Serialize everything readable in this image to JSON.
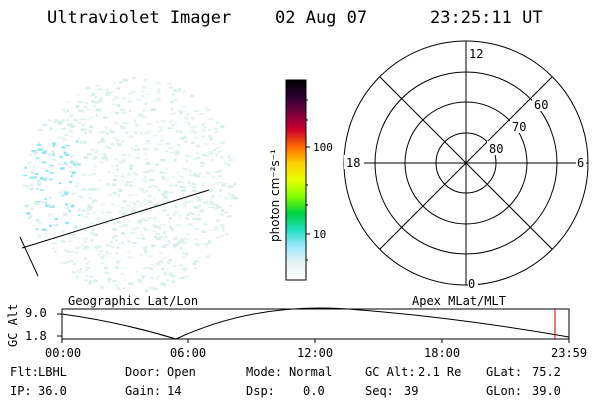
{
  "header": {
    "title": "Ultraviolet Imager",
    "date": "02 Aug 07",
    "time": "23:25:11 UT"
  },
  "colorbar": {
    "unit_label": "photon cm⁻²s⁻¹",
    "ticks": [
      "100",
      "10"
    ],
    "scale": "log",
    "colors": [
      "#000000",
      "#2a0030",
      "#7a0040",
      "#d0002a",
      "#ff6a00",
      "#ffd000",
      "#e8ff00",
      "#80ff00",
      "#00d040",
      "#20e0c0",
      "#a0e8ff",
      "#e8f4f4",
      "#ffffff"
    ]
  },
  "polar_plot": {
    "mlt_labels": [
      "12",
      "18",
      "6",
      "0"
    ],
    "lat_labels": [
      "60",
      "70",
      "80"
    ]
  },
  "altitude_plot": {
    "left_title": "Geographic Lat/Lon",
    "right_title": "Apex MLat/MLT",
    "axis_label": "GC Alt",
    "y_ticks": [
      "9.0",
      "1.8"
    ],
    "x_ticks": [
      "00:00",
      "06:00",
      "12:00",
      "18:00",
      "23:59"
    ],
    "marker_color": "#cc0000"
  },
  "status": {
    "flt_label": "Flt:",
    "flt_value": "LBHL",
    "ip_label": "IP:",
    "ip_value": "36.0",
    "door_label": "Door:",
    "door_value": "Open",
    "gain_label": "Gain:",
    "gain_value": "14",
    "mode_label": "Mode:",
    "mode_value": "Normal",
    "dsp_label": "Dsp:",
    "dsp_value": "0.0",
    "gcalt_label": "GC Alt:",
    "gcalt_value": "2.1 Re",
    "seq_label": "Seq:",
    "seq_value": "39",
    "glat_label": "GLat:",
    "glat_value": "75.2",
    "glon_label": "GLon:",
    "glon_value": "39.0"
  }
}
